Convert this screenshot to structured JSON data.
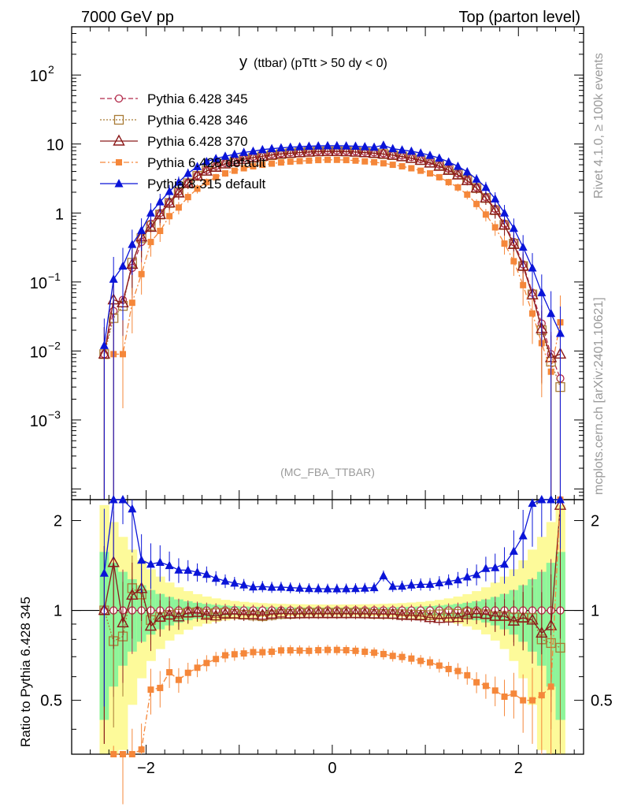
{
  "header": {
    "left": "7000 GeV pp",
    "right": "Top (parton level)"
  },
  "side": {
    "rivet": "Rivet 4.1.0, ≥ 100k events",
    "mcplots": "mcplots.cern.ch [arXiv:2401.10621]"
  },
  "ratio_ylabel": "Ratio to Pythia 6.428 345",
  "chart_data": {
    "type": "line",
    "title": "y (ttbar) (pTtt > 50 dy < 0)",
    "title_main": "y",
    "title_rest": "(ttbar) (pTtt > 50 dy < 0)",
    "watermark": "(MC_FBA_TTBAR)",
    "xlabel": "",
    "ylabel": "",
    "xlim": [
      -2.8,
      2.7
    ],
    "ylim": [
      7e-05,
      500
    ],
    "yscale": "log",
    "x_ticks": [
      "−2",
      "0",
      "2"
    ],
    "y_ticks": [
      {
        "base": "10",
        "exp": "2",
        "v": 100
      },
      {
        "base": "10",
        "exp": "",
        "v": 10
      },
      {
        "base": "1",
        "exp": "",
        "v": 1
      },
      {
        "base": "10",
        "exp": "−1",
        "v": 0.1
      },
      {
        "base": "10",
        "exp": "−2",
        "v": 0.01
      },
      {
        "base": "10",
        "exp": "−3",
        "v": 0.001
      }
    ],
    "ratio": {
      "ylim": [
        0.33,
        2.35
      ],
      "y_ticks": [
        "0.5",
        "1",
        "2"
      ]
    },
    "x": [
      -2.45,
      -2.35,
      -2.25,
      -2.15,
      -2.05,
      -1.95,
      -1.85,
      -1.75,
      -1.65,
      -1.55,
      -1.45,
      -1.35,
      -1.25,
      -1.15,
      -1.05,
      -0.95,
      -0.85,
      -0.75,
      -0.65,
      -0.55,
      -0.45,
      -0.35,
      -0.25,
      -0.15,
      -0.05,
      0.05,
      0.15,
      0.25,
      0.35,
      0.45,
      0.55,
      0.65,
      0.75,
      0.85,
      0.95,
      1.05,
      1.15,
      1.25,
      1.35,
      1.45,
      1.55,
      1.65,
      1.75,
      1.85,
      1.95,
      2.05,
      2.15,
      2.25,
      2.35,
      2.45
    ],
    "series": [
      {
        "name": "Pythia 6.428 345",
        "color": "#b22a4a",
        "marker": "circle-open",
        "dash": "6,3",
        "values": [
          0.009,
          0.038,
          0.055,
          0.16,
          0.38,
          0.7,
          1.0,
          1.45,
          2.05,
          2.75,
          3.5,
          4.2,
          4.8,
          5.3,
          5.75,
          6.2,
          6.55,
          6.9,
          7.15,
          7.35,
          7.55,
          7.7,
          7.85,
          7.95,
          8.0,
          8.0,
          7.95,
          7.85,
          7.7,
          7.55,
          7.35,
          7.1,
          6.8,
          6.45,
          6.05,
          5.6,
          5.05,
          4.4,
          3.75,
          3.05,
          2.35,
          1.7,
          1.15,
          0.7,
          0.38,
          0.18,
          0.07,
          0.025,
          0.009,
          0.004
        ]
      },
      {
        "name": "Pythia 6.428 346",
        "color": "#a87a35",
        "marker": "square-open",
        "dash": "2,2",
        "values": [
          0.009,
          0.03,
          0.045,
          0.19,
          0.43,
          0.65,
          0.95,
          1.4,
          2.0,
          2.7,
          3.45,
          4.1,
          4.7,
          5.2,
          5.6,
          6.0,
          6.3,
          6.6,
          6.9,
          7.15,
          7.35,
          7.55,
          7.7,
          7.8,
          7.85,
          7.85,
          7.8,
          7.7,
          7.55,
          7.35,
          7.15,
          6.9,
          6.6,
          6.25,
          5.85,
          5.4,
          4.9,
          4.3,
          3.65,
          3.0,
          2.3,
          1.65,
          1.1,
          0.67,
          0.36,
          0.17,
          0.066,
          0.02,
          0.007,
          0.003
        ]
      },
      {
        "name": "Pythia 6.428 370",
        "color": "#8b1a1a",
        "marker": "triangle-open",
        "dash": "",
        "values": [
          0.009,
          0.055,
          0.05,
          0.18,
          0.45,
          0.62,
          0.95,
          1.4,
          1.95,
          2.7,
          3.45,
          4.05,
          4.6,
          5.15,
          5.6,
          6.0,
          6.35,
          6.65,
          6.95,
          7.2,
          7.35,
          7.5,
          7.65,
          7.75,
          7.8,
          7.8,
          7.75,
          7.65,
          7.5,
          7.35,
          7.15,
          6.9,
          6.55,
          6.2,
          5.8,
          5.3,
          4.75,
          4.15,
          3.55,
          2.95,
          2.3,
          1.65,
          1.1,
          0.67,
          0.35,
          0.17,
          0.065,
          0.021,
          0.008,
          0.009
        ]
      },
      {
        "name": "Pythia 6.428 default",
        "color": "#f5873a",
        "marker": "square-filled",
        "dash": "7,3,2,3",
        "values": [
          0.0,
          0.009,
          0.009,
          0.05,
          0.13,
          0.38,
          0.55,
          0.9,
          1.2,
          1.7,
          2.25,
          2.8,
          3.3,
          3.75,
          4.1,
          4.45,
          4.75,
          5.0,
          5.2,
          5.4,
          5.55,
          5.65,
          5.75,
          5.85,
          5.9,
          5.9,
          5.85,
          5.75,
          5.6,
          5.45,
          5.25,
          5.0,
          4.75,
          4.45,
          4.1,
          3.75,
          3.3,
          2.8,
          2.35,
          1.85,
          1.35,
          0.95,
          0.62,
          0.36,
          0.2,
          0.09,
          0.035,
          0.013,
          0.005,
          0.026
        ]
      },
      {
        "name": "Pythia 8.315 default",
        "color": "#0a14d8",
        "marker": "triangle-filled",
        "dash": "",
        "values": [
          0.012,
          0.11,
          0.17,
          0.35,
          0.56,
          1.0,
          1.45,
          2.05,
          2.8,
          3.75,
          4.7,
          5.55,
          6.15,
          6.65,
          7.1,
          7.55,
          7.85,
          8.3,
          8.55,
          8.8,
          9.0,
          9.15,
          9.3,
          9.4,
          9.45,
          9.45,
          9.4,
          9.3,
          9.15,
          9.0,
          9.6,
          8.55,
          8.2,
          7.85,
          7.4,
          6.85,
          6.25,
          5.5,
          4.75,
          3.95,
          3.1,
          2.35,
          1.6,
          1.0,
          0.6,
          0.32,
          0.16,
          0.07,
          0.035,
          0.018
        ]
      }
    ]
  }
}
